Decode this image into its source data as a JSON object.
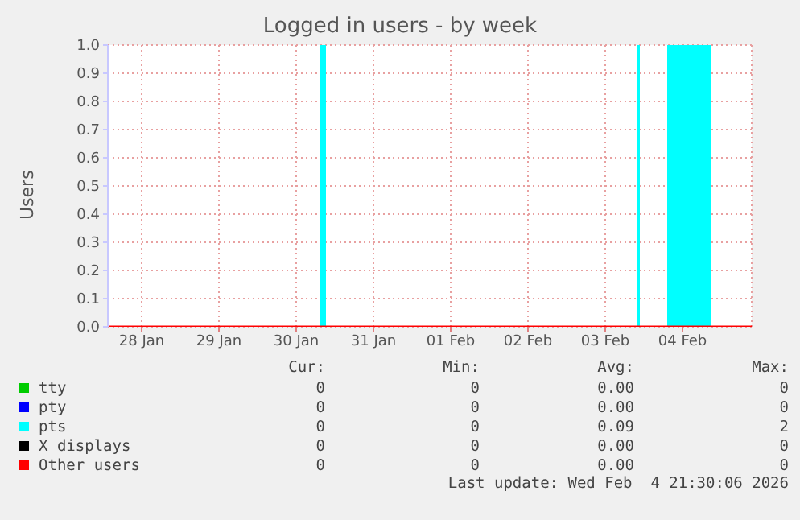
{
  "chart_data": {
    "type": "line",
    "title": "Logged in users - by week",
    "ylabel": "Users",
    "x": [
      "2026-01-27T13:30",
      "2026-02-04T21:30"
    ],
    "series": [
      {
        "name": "tty",
        "color": "#00cc00",
        "values": [
          null,
          null
        ]
      },
      {
        "name": "pty",
        "color": "#0000ff",
        "values": [
          null,
          null
        ]
      },
      {
        "name": "pts",
        "type": "area",
        "color": "#00ffff",
        "x": [
          "2026-01-27T13:30",
          "2026-01-30T07:30",
          "2026-01-30T07:30",
          "2026-01-30T09:00",
          "2026-01-30T09:00",
          "2026-02-03T10:00",
          "2026-02-03T10:00",
          "2026-02-03T10:30",
          "2026-02-03T10:30",
          "2026-02-03T19:30",
          "2026-02-03T19:30",
          "2026-02-04T08:30",
          "2026-02-04T08:30",
          "2026-02-04T21:30"
        ],
        "values": [
          0,
          0,
          1,
          1,
          0,
          0,
          1,
          1,
          0,
          0,
          1,
          1,
          0,
          0
        ]
      },
      {
        "name": "X displays",
        "color": "#000000",
        "values": [
          null,
          null
        ]
      },
      {
        "name": "Other users",
        "color": "#ff0000",
        "values": [
          0,
          0
        ]
      }
    ],
    "xlim": [
      "2026-01-27T13:30",
      "2026-02-04T21:30"
    ],
    "xticks": [
      {
        "value": "2026-01-28",
        "label": "28 Jan"
      },
      {
        "value": "2026-01-29",
        "label": "29 Jan"
      },
      {
        "value": "2026-01-30",
        "label": "30 Jan"
      },
      {
        "value": "2026-01-31",
        "label": "31 Jan"
      },
      {
        "value": "2026-02-01",
        "label": "01 Feb"
      },
      {
        "value": "2026-02-02",
        "label": "02 Feb"
      },
      {
        "value": "2026-02-03",
        "label": "03 Feb"
      },
      {
        "value": "2026-02-04",
        "label": "04 Feb"
      }
    ],
    "ylim": [
      0,
      1
    ],
    "yticks": [
      {
        "value": 0,
        "label": "0.0"
      },
      {
        "value": 0.1,
        "label": "0.1"
      },
      {
        "value": 0.2,
        "label": "0.2"
      },
      {
        "value": 0.3,
        "label": "0.3"
      },
      {
        "value": 0.4,
        "label": "0.4"
      },
      {
        "value": 0.5,
        "label": "0.5"
      },
      {
        "value": 0.6,
        "label": "0.6"
      },
      {
        "value": 0.7,
        "label": "0.7"
      },
      {
        "value": 0.8,
        "label": "0.8"
      },
      {
        "value": 0.9,
        "label": "0.9"
      },
      {
        "value": 1,
        "label": "1.0"
      }
    ],
    "grid": true,
    "legend": "bottom",
    "annotations": [
      "Cur:",
      "Min:",
      "Avg:",
      "Max:",
      "0",
      "0",
      "0.00",
      "0",
      "0",
      "0",
      "0.00",
      "0",
      "0",
      "0",
      "0.09",
      "2",
      "0",
      "0",
      "0.00",
      "0",
      "0",
      "0",
      "0.00",
      "0",
      "Last update: Wed Feb  4 21:30:06 2026"
    ]
  }
}
